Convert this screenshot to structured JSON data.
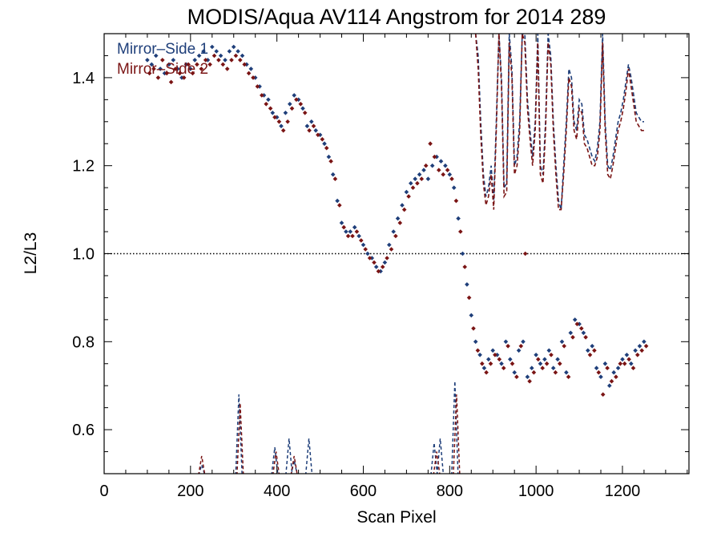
{
  "chart_data": {
    "type": "scatter",
    "title": "MODIS/Aqua AV114 Angstrom for 2014 289",
    "xlabel": "Scan Pixel",
    "ylabel": "L2/L3",
    "xlim": [
      0,
      1354
    ],
    "ylim": [
      0.5,
      1.5
    ],
    "x_ticks": [
      0,
      200,
      400,
      600,
      800,
      1000,
      1200
    ],
    "y_ticks": [
      0.6,
      0.8,
      1.0,
      1.2,
      1.4
    ],
    "reference_line": {
      "y": 1.0,
      "style": "dotted"
    },
    "grid": false,
    "legend_position": "top-left",
    "series": [
      {
        "name": "Mirror–Side 1",
        "color": "#1f3f7a",
        "points_x": [
          100,
          110,
          120,
          130,
          140,
          150,
          160,
          170,
          180,
          190,
          200,
          210,
          220,
          230,
          240,
          250,
          260,
          270,
          280,
          290,
          300,
          310,
          320,
          330,
          340,
          350,
          360,
          370,
          380,
          390,
          400,
          410,
          420,
          430,
          440,
          450,
          460,
          470,
          480,
          490,
          500,
          510,
          520,
          530,
          540,
          550,
          560,
          570,
          580,
          590,
          600,
          610,
          620,
          630,
          640,
          650,
          660,
          670,
          680,
          690,
          700,
          710,
          720,
          730,
          740,
          750,
          760,
          770,
          780,
          790,
          800,
          810,
          820,
          830,
          840,
          850,
          860,
          870,
          880,
          890,
          900,
          910,
          920,
          930,
          940,
          950,
          960,
          970,
          980,
          990,
          1000,
          1010,
          1020,
          1030,
          1040,
          1050,
          1060,
          1070,
          1080,
          1090,
          1100,
          1110,
          1120,
          1130,
          1140,
          1150,
          1160,
          1170,
          1180,
          1190,
          1200,
          1210,
          1220,
          1230,
          1240,
          1250
        ],
        "points_y": [
          1.44,
          1.43,
          1.45,
          1.42,
          1.41,
          1.43,
          1.44,
          1.42,
          1.4,
          1.43,
          1.42,
          1.44,
          1.45,
          1.46,
          1.44,
          1.47,
          1.46,
          1.45,
          1.44,
          1.46,
          1.47,
          1.46,
          1.45,
          1.43,
          1.42,
          1.4,
          1.38,
          1.36,
          1.35,
          1.32,
          1.31,
          1.29,
          1.32,
          1.34,
          1.36,
          1.35,
          1.33,
          1.29,
          1.3,
          1.28,
          1.27,
          1.25,
          1.22,
          1.18,
          1.12,
          1.07,
          1.05,
          1.05,
          1.06,
          1.04,
          1.02,
          1.0,
          0.99,
          0.97,
          0.96,
          0.98,
          1.02,
          1.05,
          1.08,
          1.11,
          1.14,
          1.16,
          1.17,
          1.18,
          1.19,
          1.17,
          1.2,
          1.22,
          1.21,
          1.2,
          1.18,
          1.15,
          1.08,
          1.0,
          0.93,
          0.86,
          0.8,
          0.77,
          0.74,
          0.76,
          0.78,
          0.77,
          0.75,
          0.8,
          0.76,
          0.73,
          0.78,
          0.8,
          0.72,
          0.74,
          0.77,
          0.75,
          0.76,
          0.78,
          0.74,
          0.76,
          0.8,
          0.73,
          0.82,
          0.85,
          0.84,
          0.82,
          0.78,
          0.79,
          0.74,
          0.72,
          0.75,
          0.7,
          0.73,
          0.74,
          0.76,
          0.77,
          0.75,
          0.78,
          0.79,
          0.8
        ],
        "line_x": [
          860,
          866,
          872,
          878,
          884,
          890,
          896,
          902,
          908,
          914,
          920,
          926,
          932,
          938,
          944,
          950,
          956,
          962,
          968,
          974,
          980,
          986,
          992,
          998,
          1004,
          1010,
          1016,
          1022,
          1028,
          1034,
          1040,
          1046,
          1052,
          1058,
          1064,
          1070,
          1076,
          1082,
          1088,
          1094,
          1100,
          1106,
          1112,
          1118,
          1124,
          1130,
          1136,
          1142,
          1148,
          1154,
          1160,
          1166,
          1172,
          1178,
          1184,
          1190,
          1196,
          1202,
          1208,
          1214,
          1220,
          1226,
          1232,
          1238,
          1244,
          1250
        ],
        "line_y": [
          1.5,
          1.45,
          1.3,
          1.18,
          1.13,
          1.15,
          1.2,
          1.12,
          1.3,
          1.5,
          1.4,
          1.15,
          1.16,
          1.5,
          1.42,
          1.2,
          1.22,
          1.3,
          1.5,
          1.5,
          1.35,
          1.28,
          1.22,
          1.3,
          1.5,
          1.2,
          1.18,
          1.3,
          1.5,
          1.45,
          1.3,
          1.2,
          1.12,
          1.1,
          1.2,
          1.3,
          1.42,
          1.4,
          1.3,
          1.28,
          1.35,
          1.34,
          1.27,
          1.26,
          1.24,
          1.22,
          1.21,
          1.24,
          1.3,
          1.5,
          1.3,
          1.2,
          1.19,
          1.22,
          1.26,
          1.3,
          1.32,
          1.35,
          1.39,
          1.43,
          1.4,
          1.36,
          1.32,
          1.31,
          1.3,
          1.3
        ],
        "low_spikes": [
          [
            226,
            0.52
          ],
          [
            312,
            0.68
          ],
          [
            395,
            0.56
          ],
          [
            428,
            0.58
          ],
          [
            440,
            0.53
          ],
          [
            474,
            0.58
          ],
          [
            764,
            0.57
          ],
          [
            778,
            0.58
          ],
          [
            812,
            0.71
          ]
        ]
      },
      {
        "name": "Mirror–Side 2",
        "color": "#7a1414",
        "points_x": [
          105,
          115,
          125,
          135,
          145,
          155,
          165,
          175,
          185,
          195,
          205,
          215,
          225,
          235,
          245,
          255,
          265,
          275,
          285,
          295,
          305,
          315,
          325,
          335,
          345,
          355,
          365,
          375,
          385,
          395,
          405,
          415,
          425,
          435,
          445,
          455,
          465,
          475,
          485,
          495,
          505,
          515,
          525,
          535,
          545,
          555,
          565,
          575,
          585,
          595,
          605,
          615,
          625,
          635,
          645,
          655,
          665,
          675,
          685,
          695,
          705,
          715,
          725,
          735,
          745,
          755,
          765,
          775,
          785,
          795,
          805,
          815,
          825,
          835,
          845,
          855,
          865,
          875,
          885,
          895,
          905,
          915,
          925,
          935,
          945,
          955,
          965,
          975,
          985,
          995,
          1005,
          1015,
          1025,
          1035,
          1045,
          1055,
          1065,
          1075,
          1085,
          1095,
          1105,
          1115,
          1125,
          1135,
          1145,
          1155,
          1165,
          1175,
          1185,
          1195,
          1205,
          1215,
          1225,
          1235,
          1245,
          1255
        ],
        "points_y": [
          1.41,
          1.42,
          1.4,
          1.44,
          1.41,
          1.39,
          1.42,
          1.41,
          1.4,
          1.43,
          1.41,
          1.43,
          1.42,
          1.44,
          1.43,
          1.45,
          1.44,
          1.43,
          1.42,
          1.44,
          1.45,
          1.44,
          1.43,
          1.41,
          1.4,
          1.38,
          1.36,
          1.34,
          1.33,
          1.31,
          1.3,
          1.28,
          1.3,
          1.33,
          1.35,
          1.34,
          1.32,
          1.28,
          1.29,
          1.27,
          1.26,
          1.24,
          1.21,
          1.17,
          1.11,
          1.06,
          1.04,
          1.04,
          1.05,
          1.03,
          1.01,
          0.99,
          0.98,
          0.96,
          0.97,
          0.99,
          1.01,
          1.04,
          1.07,
          1.1,
          1.13,
          1.15,
          1.16,
          1.17,
          1.2,
          1.25,
          1.22,
          1.19,
          1.18,
          1.19,
          1.17,
          1.12,
          1.05,
          0.97,
          0.9,
          0.83,
          0.78,
          0.75,
          0.73,
          0.75,
          0.77,
          0.76,
          0.74,
          0.79,
          0.75,
          0.72,
          0.79,
          1.0,
          0.71,
          0.73,
          0.76,
          0.74,
          0.75,
          0.77,
          0.73,
          0.75,
          0.79,
          0.72,
          0.81,
          0.84,
          0.83,
          0.81,
          0.77,
          0.78,
          0.73,
          0.68,
          0.74,
          0.71,
          0.72,
          0.75,
          0.75,
          0.76,
          0.74,
          0.77,
          0.78,
          0.79
        ],
        "line_x": [
          860,
          866,
          872,
          878,
          884,
          890,
          896,
          902,
          908,
          914,
          920,
          926,
          932,
          938,
          944,
          950,
          956,
          962,
          968,
          974,
          980,
          986,
          992,
          998,
          1004,
          1010,
          1016,
          1022,
          1028,
          1034,
          1040,
          1046,
          1052,
          1058,
          1064,
          1070,
          1076,
          1082,
          1088,
          1094,
          1100,
          1106,
          1112,
          1118,
          1124,
          1130,
          1136,
          1142,
          1148,
          1154,
          1160,
          1166,
          1172,
          1178,
          1184,
          1190,
          1196,
          1202,
          1208,
          1214,
          1220,
          1226,
          1232,
          1238,
          1244,
          1250
        ],
        "line_y": [
          1.5,
          1.42,
          1.27,
          1.16,
          1.11,
          1.13,
          1.18,
          1.1,
          1.28,
          1.5,
          1.38,
          1.13,
          1.14,
          1.48,
          1.4,
          1.18,
          1.2,
          1.28,
          1.5,
          1.48,
          1.33,
          1.26,
          1.2,
          1.28,
          1.48,
          1.18,
          1.16,
          1.28,
          1.48,
          1.43,
          1.28,
          1.18,
          1.1,
          1.1,
          1.18,
          1.28,
          1.4,
          1.38,
          1.28,
          1.26,
          1.33,
          1.32,
          1.25,
          1.24,
          1.22,
          1.2,
          1.2,
          1.22,
          1.28,
          1.48,
          1.28,
          1.18,
          1.17,
          1.2,
          1.24,
          1.28,
          1.3,
          1.33,
          1.37,
          1.42,
          1.38,
          1.34,
          1.3,
          1.29,
          1.28,
          1.28
        ],
        "low_spikes": [
          [
            226,
            0.54
          ],
          [
            315,
            0.66
          ],
          [
            398,
            0.55
          ],
          [
            440,
            0.54
          ],
          [
            770,
            0.55
          ],
          [
            816,
            0.68
          ]
        ]
      }
    ]
  }
}
